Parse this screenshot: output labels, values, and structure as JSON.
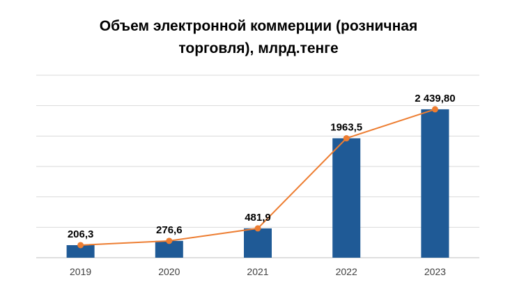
{
  "chart_data": {
    "type": "bar",
    "title_lines": [
      "Объем электронной коммерции (розничная",
      "торговля), млрд.тенге"
    ],
    "categories": [
      "2019",
      "2020",
      "2021",
      "2022",
      "2023"
    ],
    "values": [
      206.3,
      276.6,
      481.9,
      1963.5,
      2439.8
    ],
    "data_labels": [
      "206,3",
      "276,6",
      "481,9",
      "1963,5",
      "2 439,80"
    ],
    "overlay_line": {
      "values": [
        206.3,
        276.6,
        481.9,
        1963.5,
        2439.8
      ],
      "color": "#ED7D31"
    },
    "bar_color": "#1F5A96",
    "ylim": [
      0,
      3000
    ],
    "y_tick_labels_shown": false,
    "grid": true,
    "legend": "none"
  }
}
